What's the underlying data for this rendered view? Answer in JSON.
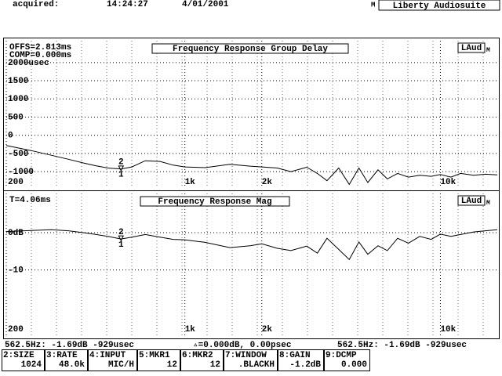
{
  "header": {
    "label": "acquired:",
    "time": "14:24:27",
    "date": "4/01/2001",
    "flag": "M",
    "app": "Liberty Audiosuite"
  },
  "chart_data": [
    {
      "type": "line",
      "title": "Frequency Response Group Delay",
      "annotations": [
        "OFFS=2.813ms",
        "COMP=0.000ms"
      ],
      "badge": "LAud",
      "badge_flag": "M",
      "marker_labels": [
        "2",
        "1"
      ],
      "log_x": true,
      "grid": true,
      "xlim": [
        200,
        16700
      ],
      "xticks": [
        200,
        {
          "value": 1000,
          "label": "1k"
        },
        {
          "value": 2000,
          "label": "2k"
        },
        {
          "value": 10000,
          "label": "10k"
        }
      ],
      "ylim": [
        -1450,
        2600
      ],
      "yticks": [
        {
          "value": 2000,
          "label": "2000usec"
        },
        1500,
        1000,
        500,
        0,
        -500,
        -1000
      ],
      "x": [
        200,
        250,
        300,
        350,
        400,
        450,
        500,
        562.5,
        620,
        700,
        800,
        900,
        1000,
        1200,
        1500,
        1800,
        2000,
        2300,
        2600,
        3000,
        3300,
        3600,
        4000,
        4400,
        4800,
        5200,
        5700,
        6200,
        6800,
        7500,
        8300,
        9200,
        10000,
        11000,
        12000,
        13500,
        15000,
        16700
      ],
      "series": [
        {
          "color": "#000000",
          "values": [
            -280,
            -420,
            -550,
            -660,
            -760,
            -840,
            -900,
            -929,
            -870,
            -700,
            -720,
            -820,
            -870,
            -890,
            -800,
            -850,
            -870,
            -900,
            -1000,
            -880,
            -1050,
            -1250,
            -900,
            -1350,
            -900,
            -1300,
            -950,
            -1200,
            -1050,
            -1150,
            -1100,
            -1130,
            -1080,
            -1150,
            -1050,
            -1100,
            -1070,
            -1090
          ]
        }
      ]
    },
    {
      "type": "line",
      "title": "Frequency Response Mag",
      "annotations": [
        "T=4.06ms"
      ],
      "badge": "LAud",
      "badge_flag": "M",
      "marker_labels": [
        "2",
        "1"
      ],
      "log_x": true,
      "grid": true,
      "xlim": [
        200,
        16700
      ],
      "xticks": [
        200,
        {
          "value": 1000,
          "label": "1k"
        },
        {
          "value": 2000,
          "label": "2k"
        },
        {
          "value": 10000,
          "label": "10k"
        }
      ],
      "ylim": [
        -27.5,
        10.5
      ],
      "yticks": [
        {
          "value": 0,
          "label": "0dB"
        },
        -10
      ],
      "x": [
        200,
        250,
        300,
        350,
        400,
        450,
        500,
        562.5,
        620,
        700,
        800,
        900,
        1000,
        1200,
        1500,
        1800,
        2000,
        2300,
        2600,
        3000,
        3300,
        3600,
        4000,
        4400,
        4800,
        5200,
        5700,
        6200,
        6800,
        7500,
        8300,
        9200,
        10000,
        11000,
        12000,
        13500,
        15000,
        16700
      ],
      "series": [
        {
          "color": "#000000",
          "values": [
            0.3,
            0.6,
            0.8,
            0.5,
            0,
            -0.5,
            -1,
            -1.69,
            -1.2,
            -0.5,
            -1.2,
            -1.8,
            -1.9,
            -2.6,
            -4,
            -3.5,
            -3,
            -4.2,
            -4.8,
            -3.6,
            -5.5,
            -1.5,
            -4.5,
            -7.2,
            -2.5,
            -5.8,
            -3.5,
            -4.8,
            -1.5,
            -2.8,
            -1,
            -1.8,
            -0.4,
            -1,
            -0.5,
            0.2,
            0.5,
            0.8
          ]
        }
      ]
    }
  ],
  "status": {
    "left": "562.5Hz:  -1.69dB   -929usec",
    "middle": "▵=0.000dB, 0.00psec",
    "right": "562.5Hz:  -1.69dB  -929usec"
  },
  "keys": [
    {
      "label": "2:SIZE",
      "value": "1024"
    },
    {
      "label": "3:RATE",
      "value": "48.0k"
    },
    {
      "label": "4:INPUT",
      "value": "MIC/H"
    },
    {
      "label": "5:MKR1",
      "value": "12"
    },
    {
      "label": "6:MKR2",
      "value": "12"
    },
    {
      "label": "7:WINDOW",
      "value": ".BLACKH"
    },
    {
      "label": "8:GAIN",
      "value": "-1.2dB"
    },
    {
      "label": "9:DCMP",
      "value": "0.000"
    }
  ]
}
